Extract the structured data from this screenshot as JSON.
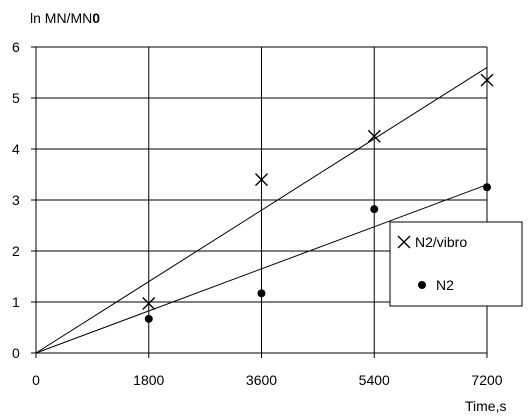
{
  "chart_data": {
    "type": "scatter",
    "ylabel_prefix": "ln MN/MN",
    "ylabel_suffix": "0",
    "xlabel": "Time,s",
    "xlim": [
      0,
      7200
    ],
    "ylim": [
      0,
      6
    ],
    "x_ticks": [
      0,
      1800,
      3600,
      5400,
      7200
    ],
    "x_tick_labels": [
      "0",
      "1800",
      "3600",
      "5400",
      "7200"
    ],
    "y_ticks": [
      0,
      1,
      2,
      3,
      4,
      5,
      6
    ],
    "y_tick_labels": [
      "0",
      "1",
      "2",
      "3",
      "4",
      "5",
      "6"
    ],
    "grid": true,
    "legend_position": "right",
    "series": [
      {
        "name": "N2/vibro",
        "marker": "cross",
        "x": [
          1800,
          3600,
          5400,
          7200
        ],
        "y": [
          0.97,
          3.4,
          4.25,
          5.35
        ],
        "trendline": {
          "x": [
            0,
            7200
          ],
          "y": [
            0,
            5.6
          ]
        }
      },
      {
        "name": "N2",
        "marker": "dot",
        "x": [
          1800,
          3600,
          5400,
          7200
        ],
        "y": [
          0.67,
          1.17,
          2.82,
          3.25
        ],
        "trendline": {
          "x": [
            0,
            7200
          ],
          "y": [
            0,
            3.3
          ]
        }
      }
    ]
  }
}
